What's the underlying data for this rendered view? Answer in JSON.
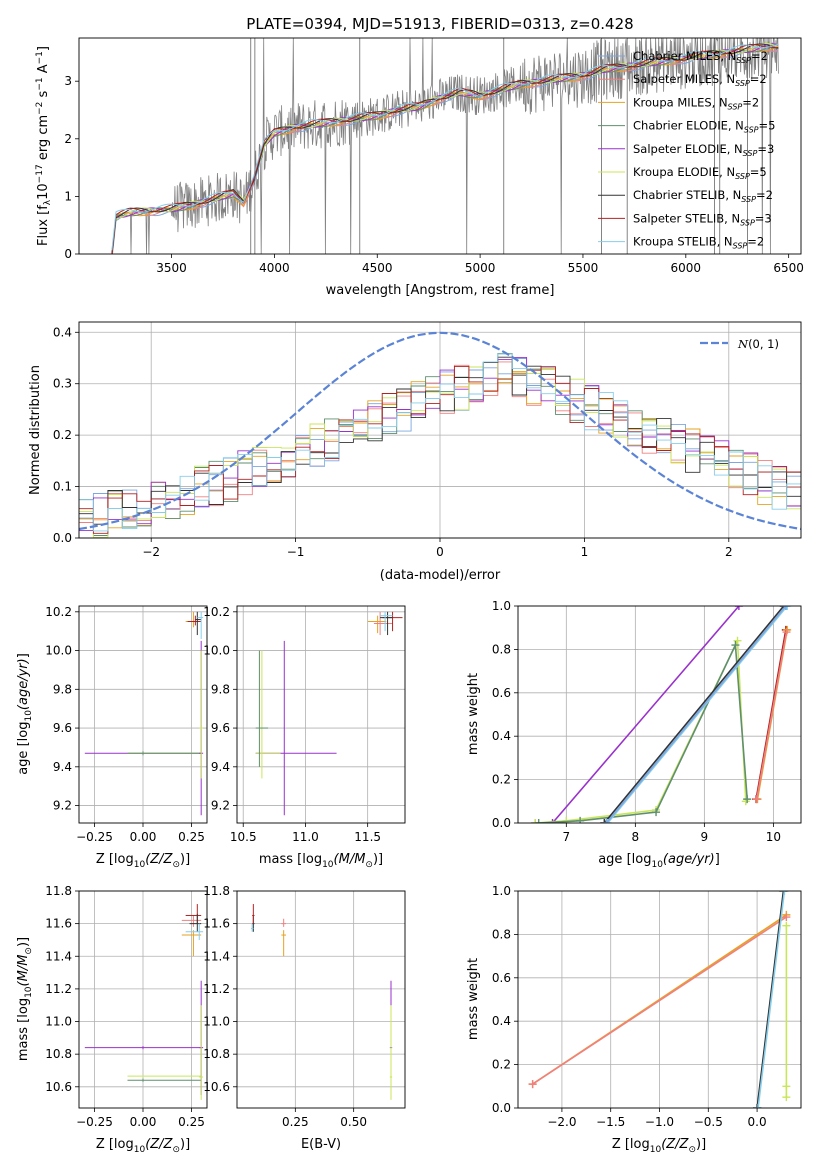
{
  "figure": {
    "title": "PLATE=0394, MJD=51913, FIBERID=0313, z=0.428",
    "colors": {
      "Chabrier MILES": "#7ca7e0",
      "Salpeter MILES": "#f08080",
      "Kroupa MILES": "#e6a321",
      "Chabrier ELODIE": "#5f8f6f",
      "Salpeter ELODIE": "#9932cc",
      "Kroupa ELODIE": "#c8e65a",
      "Chabrier STELIB": "#333333",
      "Salpeter STELIB": "#b22222",
      "Kroupa STELIB": "#87ceeb",
      "data": "#808080",
      "normal": "#5b84d6"
    }
  },
  "chart_data": [
    {
      "id": "spectrum",
      "type": "line",
      "xlabel": "wavelength [Angstrom, rest frame]",
      "ylabel": "Flux [f$_\\lambda$10$^{-17}$ erg cm$^{-2}$ s$^{-1}$ A$^{-1}$]",
      "ylabel_parts": {
        "pre": "Flux [f",
        "sub1": "λ",
        "mid": "10",
        "sup1": "−17",
        "post1": " erg cm",
        "sup2": "−2",
        "post2": " s",
        "sup3": "−1",
        "post3": " A",
        "sup4": "−1",
        "end": "]"
      },
      "xlim": [
        3050,
        6560
      ],
      "ylim": [
        0,
        3.75
      ],
      "xticks": [
        3500,
        4000,
        4500,
        5000,
        5500,
        6000,
        6500
      ],
      "yticks": [
        0,
        1,
        2,
        3
      ],
      "grid": false,
      "legend_position": "top-right",
      "legend": [
        {
          "name": "Chabrier MILES",
          "nssp": "2"
        },
        {
          "name": "Salpeter MILES",
          "nssp": "2"
        },
        {
          "name": "Kroupa MILES",
          "nssp": "2"
        },
        {
          "name": "Chabrier ELODIE",
          "nssp": "5"
        },
        {
          "name": "Salpeter ELODIE",
          "nssp": "3"
        },
        {
          "name": "Kroupa ELODIE",
          "nssp": "5"
        },
        {
          "name": "Chabrier STELIB",
          "nssp": "2"
        },
        {
          "name": "Salpeter STELIB",
          "nssp": "3"
        },
        {
          "name": "Kroupa STELIB",
          "nssp": "2"
        }
      ],
      "continuum": {
        "x": [
          3210,
          3230,
          3300,
          3400,
          3500,
          3600,
          3700,
          3800,
          3850,
          3900,
          3950,
          4000,
          4100,
          4200,
          4300,
          4400,
          4500,
          4600,
          4700,
          4800,
          4900,
          5000,
          5100,
          5200,
          5300,
          5400,
          5500,
          5600,
          5700,
          5800,
          5900,
          6000,
          6100,
          6200,
          6300,
          6400,
          6450
        ],
        "y": [
          0.0,
          0.65,
          0.72,
          0.75,
          0.78,
          0.85,
          0.95,
          1.05,
          0.9,
          1.3,
          1.9,
          2.1,
          2.2,
          2.25,
          2.3,
          2.35,
          2.4,
          2.5,
          2.55,
          2.7,
          2.8,
          2.75,
          2.85,
          2.95,
          3.0,
          3.05,
          3.1,
          3.2,
          3.25,
          3.3,
          3.35,
          3.4,
          3.45,
          3.5,
          3.55,
          3.6,
          3.6
        ]
      }
    },
    {
      "id": "residuals",
      "type": "histogram",
      "xlabel": "(data-model)/error",
      "ylabel": "Normed distribution",
      "xlim": [
        -2.5,
        2.5
      ],
      "ylim": [
        0,
        0.42
      ],
      "xticks": [
        -2,
        -1,
        0,
        1,
        2
      ],
      "yticks": [
        0.0,
        0.1,
        0.2,
        0.3,
        0.4
      ],
      "grid": true,
      "legend_position": "top-right",
      "legend_label": "N(0,1)",
      "bin_width": 0.1,
      "envelope": {
        "x": [
          -2.5,
          -2.0,
          -1.5,
          -1.0,
          -0.5,
          0.0,
          0.5,
          1.0,
          1.5,
          2.0,
          2.5
        ],
        "y": [
          0.04,
          0.06,
          0.11,
          0.16,
          0.22,
          0.28,
          0.32,
          0.26,
          0.2,
          0.14,
          0.08
        ]
      }
    },
    {
      "id": "age_vs_Z",
      "type": "scatter",
      "xlabel": "Z [log10(Z/Z⊙)]",
      "ylabel": "age  [log10(age/yr)]",
      "xlim": [
        -0.33,
        0.33
      ],
      "ylim": [
        9.11,
        10.23
      ],
      "xticks": [
        -0.25,
        0.0,
        0.25
      ],
      "yticks": [
        9.2,
        9.4,
        9.6,
        9.8,
        10.0,
        10.2
      ],
      "grid": true
    },
    {
      "id": "age_vs_mass",
      "type": "scatter",
      "xlabel": "mass [log10(M/M⊙)]",
      "ylabel": "",
      "xlim": [
        10.45,
        11.8
      ],
      "ylim": [
        9.11,
        10.23
      ],
      "xticks": [
        10.5,
        11.0,
        11.5
      ],
      "yticks": [
        9.2,
        9.4,
        9.6,
        9.8,
        10.0,
        10.2
      ],
      "grid": true
    },
    {
      "id": "weight_vs_age",
      "type": "line",
      "xlabel": "age  [log10(age/yr)]",
      "ylabel": "mass weight",
      "xlim": [
        6.3,
        10.4
      ],
      "ylim": [
        0,
        1.0
      ],
      "xticks": [
        7,
        8,
        9,
        10
      ],
      "yticks": [
        0.0,
        0.2,
        0.4,
        0.6,
        0.8,
        1.0
      ],
      "grid": true,
      "series": [
        {
          "color_key": "Salpeter ELODIE",
          "x": [
            6.55,
            6.8,
            9.5
          ],
          "y": [
            0.0,
            0.0,
            1.0
          ]
        },
        {
          "color_key": "Kroupa ELODIE",
          "x": [
            6.55,
            7.0,
            8.3,
            9.48,
            9.6
          ],
          "y": [
            0.0,
            0.01,
            0.06,
            0.84,
            0.1
          ]
        },
        {
          "color_key": "Chabrier ELODIE",
          "x": [
            6.6,
            7.2,
            8.3,
            9.45,
            9.62
          ],
          "y": [
            0.0,
            0.01,
            0.05,
            0.82,
            0.11
          ]
        },
        {
          "color_key": "Chabrier STELIB",
          "x": [
            7.55,
            10.15
          ],
          "y": [
            0.0,
            1.0
          ]
        },
        {
          "color_key": "Kroupa STELIB",
          "x": [
            7.6,
            10.2
          ],
          "y": [
            0.0,
            1.0
          ]
        },
        {
          "color_key": "Chabrier MILES",
          "x": [
            7.58,
            10.18
          ],
          "y": [
            0.0,
            1.0
          ]
        },
        {
          "color_key": "Salpeter STELIB",
          "x": [
            9.75,
            10.18
          ],
          "y": [
            0.11,
            0.89
          ]
        },
        {
          "color_key": "Kroupa MILES",
          "x": [
            9.77,
            10.2
          ],
          "y": [
            0.11,
            0.89
          ]
        },
        {
          "color_key": "Salpeter MILES",
          "x": [
            9.76,
            10.19
          ],
          "y": [
            0.11,
            0.88
          ]
        }
      ]
    },
    {
      "id": "mass_vs_Z",
      "type": "scatter",
      "xlabel": "Z [log10(Z/Z⊙)]",
      "ylabel": "mass [log10(M/M⊙)]",
      "xlim": [
        -0.33,
        0.33
      ],
      "ylim": [
        10.47,
        11.8
      ],
      "xticks": [
        -0.25,
        0.0,
        0.25
      ],
      "yticks": [
        10.6,
        10.8,
        11.0,
        11.2,
        11.4,
        11.6,
        11.8
      ],
      "grid": true
    },
    {
      "id": "mass_vs_ebv",
      "type": "scatter",
      "xlabel": "E(B-V)",
      "ylabel": "",
      "xlim": [
        0.0,
        0.72
      ],
      "ylim": [
        10.47,
        11.8
      ],
      "xticks": [
        0.25,
        0.5
      ],
      "yticks": [
        10.6,
        10.8,
        11.0,
        11.2,
        11.4,
        11.6,
        11.8
      ],
      "grid": true
    },
    {
      "id": "weight_vs_Z",
      "type": "line",
      "xlabel": "Z [log10(Z/Z⊙)]",
      "ylabel": "mass weight",
      "xlim": [
        -2.45,
        0.45
      ],
      "ylim": [
        0,
        1.0
      ],
      "xticks": [
        -2.0,
        -1.5,
        -1.0,
        -0.5,
        0.0
      ],
      "yticks": [
        0.0,
        0.2,
        0.4,
        0.6,
        0.8,
        1.0
      ],
      "grid": true,
      "series": [
        {
          "color_key": "Kroupa MILES",
          "x": [
            -2.3,
            0.3
          ],
          "y": [
            0.11,
            0.89
          ]
        },
        {
          "color_key": "Salpeter MILES",
          "x": [
            -2.3,
            0.3
          ],
          "y": [
            0.11,
            0.88
          ]
        },
        {
          "color_key": "Chabrier STELIB",
          "x": [
            0.0,
            0.27
          ],
          "y": [
            0.0,
            1.0
          ]
        },
        {
          "color_key": "Kroupa STELIB",
          "x": [
            0.01,
            0.28
          ],
          "y": [
            0.0,
            1.0
          ]
        },
        {
          "color_key": "Kroupa ELODIE",
          "x": [
            0.3,
            0.3,
            0.3
          ],
          "y": [
            0.05,
            0.84,
            0.1
          ]
        }
      ]
    }
  ]
}
